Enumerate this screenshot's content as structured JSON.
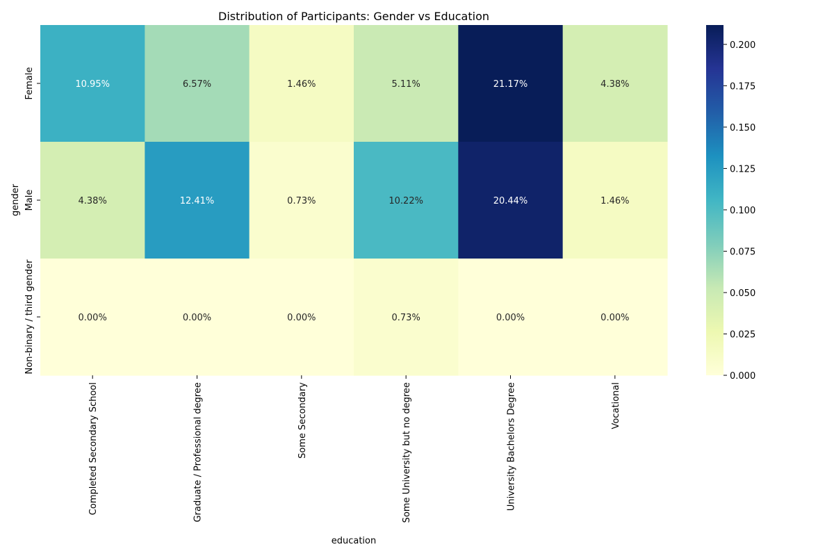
{
  "chart_data": {
    "type": "heatmap",
    "title": "Distribution of Participants: Gender vs Education",
    "xlabel": "education",
    "ylabel": "gender",
    "x_categories": [
      "Completed Secondary School",
      "Graduate / Professional degree",
      "Some Secondary",
      "Some University but no degree",
      "University Bachelors Degree",
      "Vocational"
    ],
    "y_categories": [
      "Female",
      "Male",
      "Non-binary / third gender"
    ],
    "values": [
      [
        0.1095,
        0.0657,
        0.0146,
        0.0511,
        0.2117,
        0.0438
      ],
      [
        0.0438,
        0.1241,
        0.0073,
        0.1022,
        0.2044,
        0.0146
      ],
      [
        0.0,
        0.0,
        0.0,
        0.0073,
        0.0,
        0.0
      ]
    ],
    "cell_labels": [
      [
        "10.95%",
        "6.57%",
        "1.46%",
        "5.11%",
        "21.17%",
        "4.38%"
      ],
      [
        "4.38%",
        "12.41%",
        "0.73%",
        "10.22%",
        "20.44%",
        "1.46%"
      ],
      [
        "0.00%",
        "0.00%",
        "0.00%",
        "0.73%",
        "0.00%",
        "0.00%"
      ]
    ],
    "colormap": "YlGnBu",
    "colorbar": {
      "range": [
        0,
        0.2117
      ],
      "ticks": [
        0.0,
        0.025,
        0.05,
        0.075,
        0.1,
        0.125,
        0.15,
        0.175,
        0.2
      ],
      "tick_labels": [
        "0.000",
        "0.025",
        "0.050",
        "0.075",
        "0.100",
        "0.125",
        "0.150",
        "0.175",
        "0.200"
      ]
    }
  }
}
